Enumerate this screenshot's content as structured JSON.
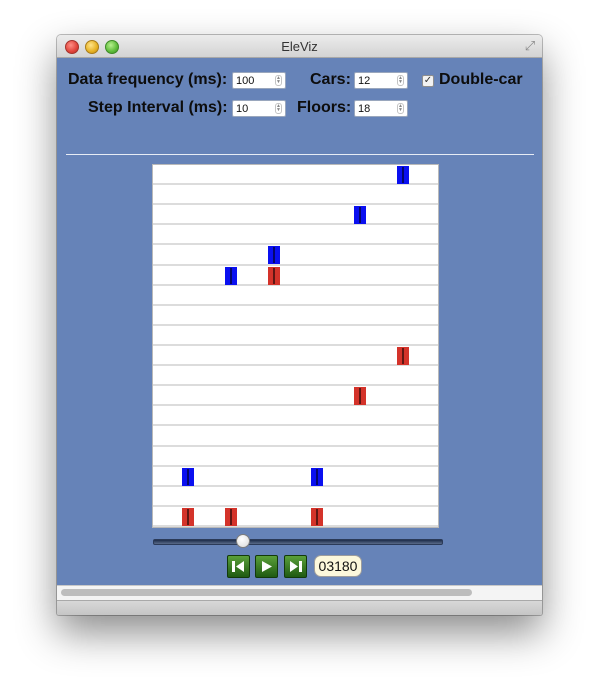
{
  "window": {
    "title": "EleViz",
    "fullscreen_icon": "fullscreen-arrows-icon"
  },
  "controls": {
    "data_frequency_label": "Data frequency (ms):",
    "data_frequency_value": "100",
    "cars_label": "Cars:",
    "cars_value": "12",
    "double_car_label": "Double-car",
    "double_car_checked": true,
    "step_interval_label": "Step Interval (ms):",
    "step_interval_value": "10",
    "floors_label": "Floors:",
    "floors_value": "18"
  },
  "shaft": {
    "floor_count": 18,
    "colors": {
      "upper_car": "#0a10f0",
      "lower_car": "#d4332a"
    },
    "cars": [
      {
        "car": 1,
        "upper_floor": 3,
        "lower_floor": 1
      },
      {
        "car": 2,
        "upper_floor": 13,
        "lower_floor": 1
      },
      {
        "car": 3,
        "upper_floor": 14,
        "lower_floor": 13
      },
      {
        "car": 4,
        "upper_floor": 3,
        "lower_floor": 1
      },
      {
        "car": 5,
        "upper_floor": 16,
        "lower_floor": 7
      },
      {
        "car": 6,
        "upper_floor": 18,
        "lower_floor": 9
      }
    ]
  },
  "playback": {
    "position_fraction": 0.31,
    "skip_back_icon": "skip-to-start-icon",
    "play_icon": "play-icon",
    "skip_forward_icon": "skip-to-end-icon",
    "step_counter": "03180"
  }
}
